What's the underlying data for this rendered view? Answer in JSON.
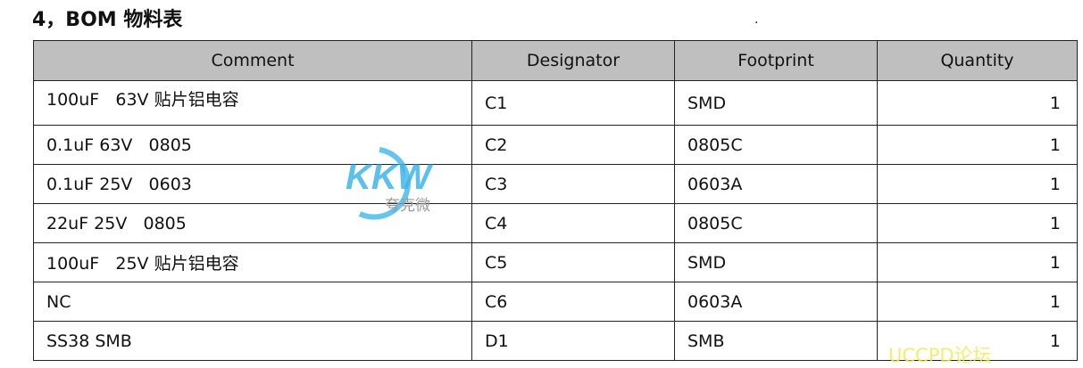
{
  "title": "4，BOM 物料表",
  "dot": ".",
  "columns": [
    "Comment",
    "Designator",
    "Footprint",
    "Quantity"
  ],
  "rows": [
    {
      "comment": "100uF   63V 贴片铝电容",
      "designator": "C1",
      "footprint": "SMD",
      "quantity": "1"
    },
    {
      "comment": "0.1uF 63V   0805",
      "designator": "C2",
      "footprint": "0805C",
      "quantity": "1"
    },
    {
      "comment": "0.1uF 25V   0603",
      "designator": "C3",
      "footprint": "0603A",
      "quantity": "1"
    },
    {
      "comment": "22uF 25V   0805",
      "designator": "C4",
      "footprint": "0805C",
      "quantity": "1"
    },
    {
      "comment": "100uF   25V 贴片铝电容",
      "designator": "C5",
      "footprint": "SMD",
      "quantity": "1"
    },
    {
      "comment": "NC",
      "designator": "C6",
      "footprint": "0603A",
      "quantity": "1"
    },
    {
      "comment": "SS38 SMB",
      "designator": "D1",
      "footprint": "SMB",
      "quantity": "1"
    }
  ],
  "watermarks": {
    "logo": "KKW 夸克微",
    "forum": "UCCPD论坛",
    "logo_color": "#3fb6e8",
    "forum_color": "#f5ea50"
  }
}
